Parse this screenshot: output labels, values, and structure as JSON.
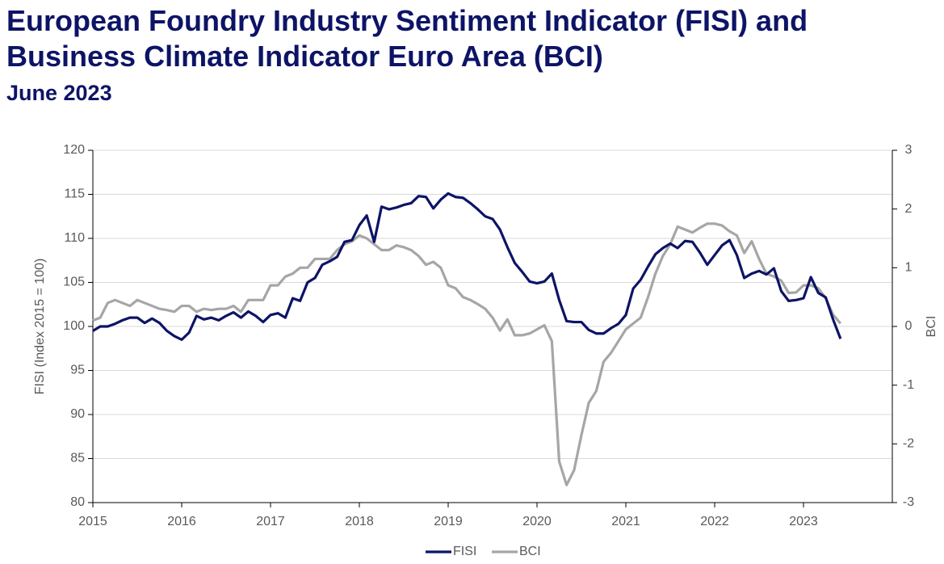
{
  "chart_data": {
    "type": "line",
    "title": "European Foundry Industry Sentiment Indicator (FISI) and Business Climate Indicator Euro Area (BCI)",
    "subtitle": "June 2023",
    "y_label": "FISI (Index 2015 = 100)",
    "y2_label": "BCI",
    "x": [
      2015,
      2015.083,
      2015.167,
      2015.25,
      2015.333,
      2015.417,
      2015.5,
      2015.583,
      2015.667,
      2015.75,
      2015.833,
      2015.917,
      2016,
      2016.083,
      2016.167,
      2016.25,
      2016.333,
      2016.417,
      2016.5,
      2016.583,
      2016.667,
      2016.75,
      2016.833,
      2016.917,
      2017,
      2017.083,
      2017.167,
      2017.25,
      2017.333,
      2017.417,
      2017.5,
      2017.583,
      2017.667,
      2017.75,
      2017.833,
      2017.917,
      2018,
      2018.083,
      2018.167,
      2018.25,
      2018.333,
      2018.417,
      2018.5,
      2018.583,
      2018.667,
      2018.75,
      2018.833,
      2018.917,
      2019,
      2019.083,
      2019.167,
      2019.25,
      2019.333,
      2019.417,
      2019.5,
      2019.583,
      2019.667,
      2019.75,
      2019.833,
      2019.917,
      2020,
      2020.083,
      2020.167,
      2020.25,
      2020.333,
      2020.417,
      2020.5,
      2020.583,
      2020.667,
      2020.75,
      2020.833,
      2020.917,
      2021,
      2021.083,
      2021.167,
      2021.25,
      2021.333,
      2021.417,
      2021.5,
      2021.583,
      2021.667,
      2021.75,
      2021.833,
      2021.917,
      2022,
      2022.083,
      2022.167,
      2022.25,
      2022.333,
      2022.417,
      2022.5,
      2022.583,
      2022.667,
      2022.75,
      2022.833,
      2022.917,
      2023,
      2023.083,
      2023.167,
      2023.25,
      2023.333,
      2023.417
    ],
    "xlim": [
      2015,
      2024
    ],
    "xticks": [
      2015,
      2016,
      2017,
      2018,
      2019,
      2020,
      2021,
      2022,
      2023
    ],
    "ylim": [
      80,
      120
    ],
    "yticks": [
      80,
      85,
      90,
      95,
      100,
      105,
      110,
      115,
      120
    ],
    "y2lim": [
      -3,
      3
    ],
    "y2ticks": [
      -3,
      -2,
      -1,
      0,
      1,
      2,
      3
    ],
    "grid": true,
    "legend": "bottom",
    "series": [
      {
        "name": "FISI",
        "color": "#0d1466",
        "axis": "y",
        "values": [
          99.5,
          100.0,
          100.0,
          100.3,
          100.7,
          101.0,
          101.0,
          100.4,
          100.9,
          100.4,
          99.5,
          98.9,
          98.5,
          99.3,
          101.2,
          100.8,
          101.0,
          100.7,
          101.2,
          101.6,
          101.0,
          101.7,
          101.2,
          100.5,
          101.3,
          101.5,
          101.0,
          103.2,
          102.9,
          105.0,
          105.5,
          107.0,
          107.4,
          107.9,
          109.6,
          109.8,
          111.5,
          112.6,
          109.6,
          113.6,
          113.3,
          113.5,
          113.8,
          114.0,
          114.8,
          114.7,
          113.4,
          114.4,
          115.1,
          114.7,
          114.6,
          114.0,
          113.3,
          112.5,
          112.2,
          111.0,
          109.0,
          107.2,
          106.2,
          105.1,
          104.9,
          105.1,
          106.0,
          103.0,
          100.6,
          100.5,
          100.5,
          99.6,
          99.2,
          99.2,
          99.8,
          100.3,
          101.3,
          104.3,
          105.3,
          106.8,
          108.2,
          108.9,
          109.4,
          108.9,
          109.7,
          109.6,
          108.4,
          107.0,
          108.1,
          109.2,
          109.8,
          108.1,
          105.5,
          106.0,
          106.3,
          105.9,
          106.6,
          104.0,
          102.9,
          103.0,
          103.2,
          105.6,
          103.8,
          103.3,
          100.8,
          98.6
        ]
      },
      {
        "name": "BCI",
        "color": "#a6a6a6",
        "axis": "y2",
        "values": [
          0.1,
          0.15,
          0.4,
          0.45,
          0.4,
          0.35,
          0.45,
          0.4,
          0.35,
          0.3,
          0.28,
          0.25,
          0.35,
          0.35,
          0.25,
          0.3,
          0.28,
          0.3,
          0.3,
          0.35,
          0.25,
          0.45,
          0.45,
          0.45,
          0.7,
          0.7,
          0.85,
          0.9,
          1.0,
          1.0,
          1.15,
          1.15,
          1.15,
          1.3,
          1.4,
          1.45,
          1.55,
          1.5,
          1.4,
          1.3,
          1.3,
          1.38,
          1.35,
          1.3,
          1.2,
          1.05,
          1.1,
          1.0,
          0.7,
          0.65,
          0.5,
          0.45,
          0.38,
          0.3,
          0.15,
          -0.07,
          0.12,
          -0.15,
          -0.15,
          -0.12,
          -0.05,
          0.02,
          -0.25,
          -2.3,
          -2.7,
          -2.45,
          -1.85,
          -1.3,
          -1.1,
          -0.6,
          -0.45,
          -0.25,
          -0.05,
          0.05,
          0.15,
          0.5,
          0.9,
          1.2,
          1.4,
          1.7,
          1.65,
          1.6,
          1.68,
          1.75,
          1.75,
          1.72,
          1.62,
          1.55,
          1.25,
          1.45,
          1.15,
          0.9,
          0.85,
          0.78,
          0.57,
          0.58,
          0.7,
          0.7,
          0.65,
          0.48,
          0.2,
          0.05
        ]
      }
    ]
  }
}
